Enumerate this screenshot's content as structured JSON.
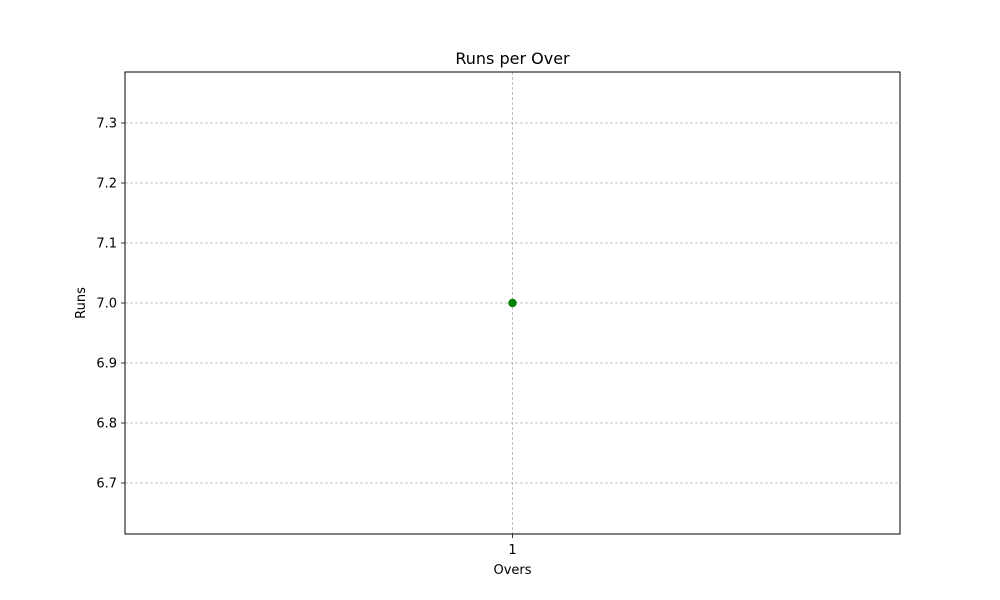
{
  "chart_data": {
    "type": "scatter",
    "title": "Runs per Over",
    "xlabel": "Overs",
    "ylabel": "Runs",
    "x_ticks": [
      1
    ],
    "y_ticks": [
      6.7,
      6.8,
      6.9,
      7.0,
      7.1,
      7.2,
      7.3
    ],
    "xlim": [
      0.45,
      1.55
    ],
    "ylim": [
      6.615,
      7.385
    ],
    "grid": true,
    "legend": "none",
    "series": [
      {
        "x": [
          1
        ],
        "y": [
          7.0
        ],
        "color": "#008000",
        "marker": "circle"
      }
    ]
  }
}
